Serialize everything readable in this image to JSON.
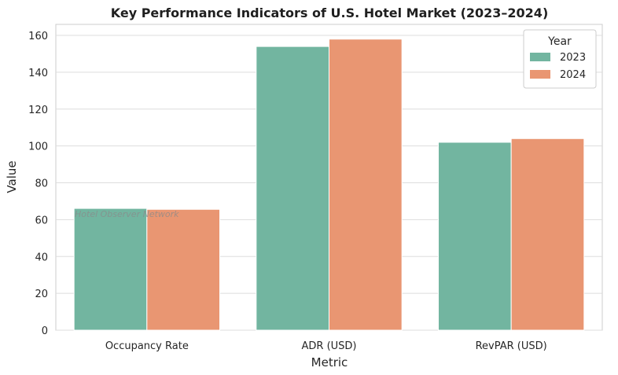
{
  "chart_data": {
    "type": "bar",
    "title": "Key Performance Indicators of U.S. Hotel Market (2023–2024)",
    "xlabel": "Metric",
    "ylabel": "Value",
    "categories": [
      "Occupancy Rate",
      "ADR (USD)",
      "RevPAR (USD)"
    ],
    "series": [
      {
        "name": "2023",
        "values": [
          66.1,
          154.0,
          102.0
        ],
        "color": "#72b5a0"
      },
      {
        "name": "2024",
        "values": [
          65.6,
          158.0,
          104.0
        ],
        "color": "#e99672"
      }
    ],
    "ylim": [
      0,
      166
    ],
    "yticks": [
      0,
      20,
      40,
      60,
      80,
      100,
      120,
      140,
      160
    ],
    "grid": true,
    "legend_title": "Year",
    "legend_position": "top-right",
    "watermark": "Hotel Observer Network"
  }
}
